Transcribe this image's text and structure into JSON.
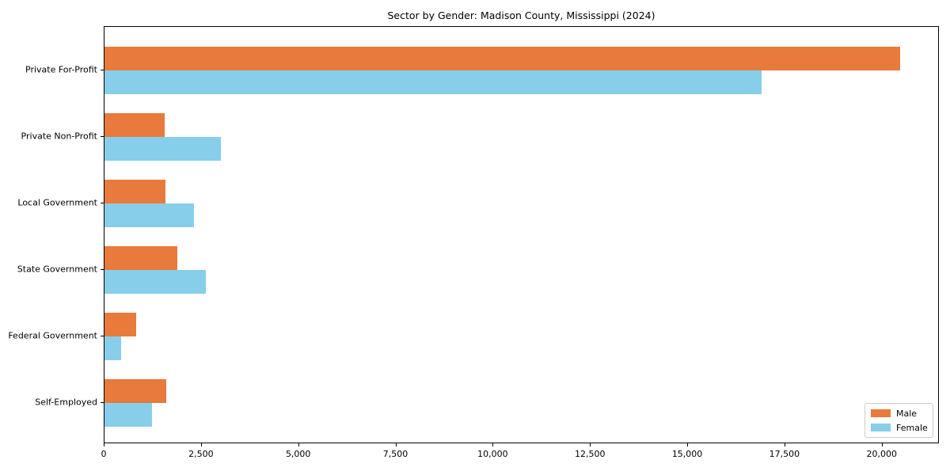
{
  "title": "Sector by Gender: Madison County, Mississippi (2024)",
  "chart_data": {
    "type": "bar",
    "orientation": "horizontal",
    "title": "Sector by Gender: Madison County, Mississippi (2024)",
    "categories": [
      "Private For-Profit",
      "Private Non-Profit",
      "Local Government",
      "State Government",
      "Federal Government",
      "Self-Employed"
    ],
    "series": [
      {
        "name": "Male",
        "color": "#e87a3c",
        "values": [
          20450,
          1540,
          1570,
          1880,
          810,
          1590
        ]
      },
      {
        "name": "Female",
        "color": "#87ceeb",
        "values": [
          16900,
          3000,
          2290,
          2610,
          420,
          1220
        ]
      }
    ],
    "xlabel": "",
    "ylabel": "",
    "xlim": [
      0,
      21470
    ],
    "xticks": [
      0,
      2500,
      5000,
      7500,
      10000,
      12500,
      15000,
      17500,
      20000
    ],
    "xtick_labels": [
      "0",
      "2,500",
      "5,000",
      "7,500",
      "10,000",
      "12,500",
      "15,000",
      "17,500",
      "20,000"
    ],
    "grid": false,
    "background": "#ffffff",
    "legend": {
      "position": "lower right",
      "entries": [
        "Male",
        "Female"
      ]
    }
  }
}
